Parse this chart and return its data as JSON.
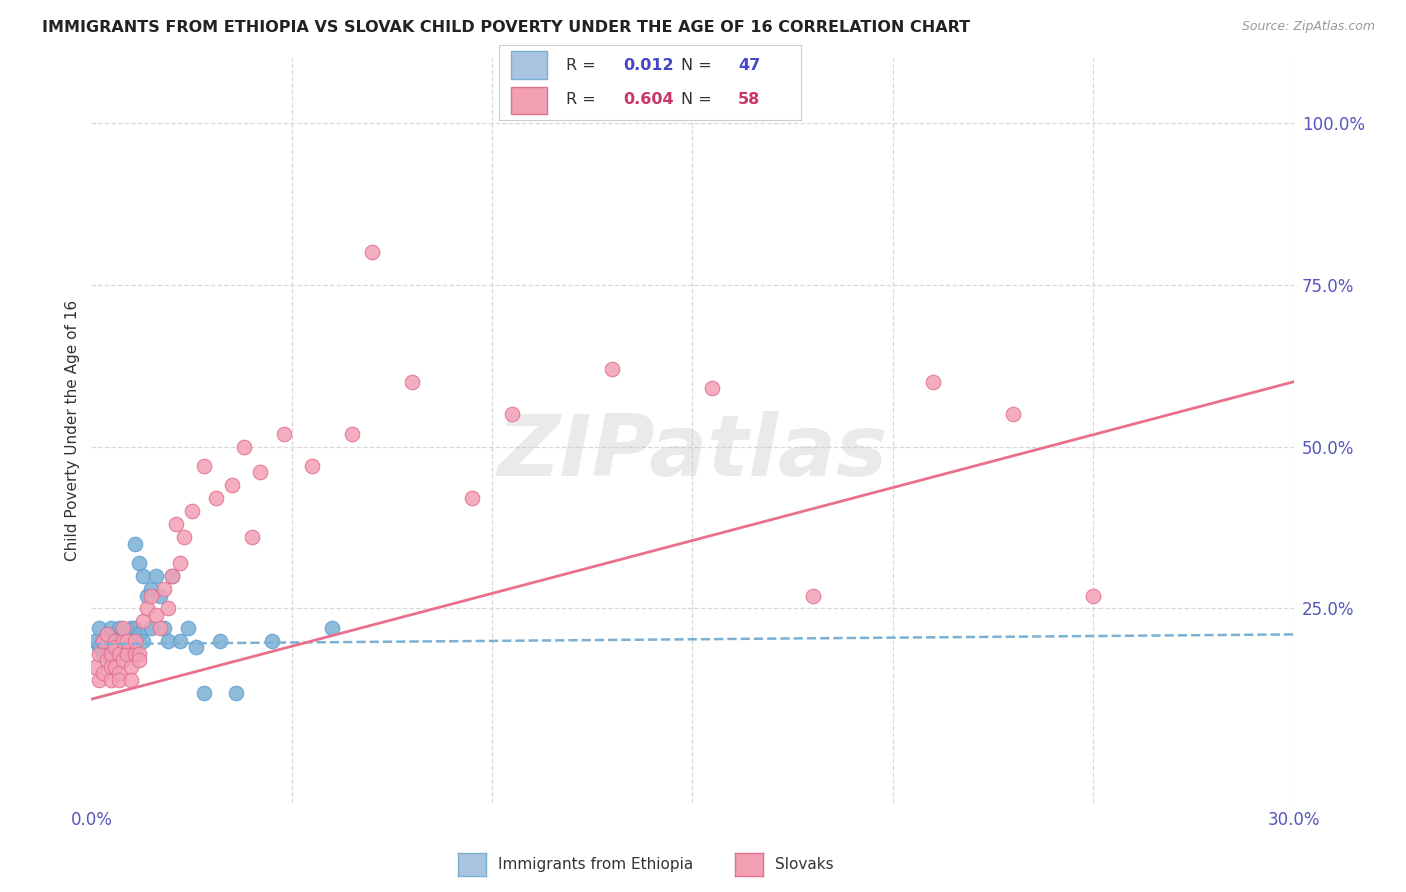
{
  "title": "IMMIGRANTS FROM ETHIOPIA VS SLOVAK CHILD POVERTY UNDER THE AGE OF 16 CORRELATION CHART",
  "source": "Source: ZipAtlas.com",
  "ylabel": "Child Poverty Under the Age of 16",
  "xlim": [
    0.0,
    0.3
  ],
  "ylim": [
    -0.05,
    1.1
  ],
  "xticks": [
    0.0,
    0.05,
    0.1,
    0.15,
    0.2,
    0.25,
    0.3
  ],
  "xticklabels": [
    "0.0%",
    "",
    "",
    "",
    "",
    "",
    "30.0%"
  ],
  "right_ytick_vals": [
    0.0,
    0.25,
    0.5,
    0.75,
    1.0
  ],
  "right_ytick_labels": [
    "",
    "25.0%",
    "50.0%",
    "75.0%",
    "100.0%"
  ],
  "ethiopia_x": [
    0.001,
    0.002,
    0.002,
    0.003,
    0.003,
    0.004,
    0.004,
    0.005,
    0.005,
    0.005,
    0.006,
    0.006,
    0.006,
    0.007,
    0.007,
    0.007,
    0.007,
    0.008,
    0.008,
    0.008,
    0.009,
    0.009,
    0.01,
    0.01,
    0.01,
    0.011,
    0.011,
    0.012,
    0.012,
    0.013,
    0.013,
    0.014,
    0.015,
    0.015,
    0.016,
    0.017,
    0.018,
    0.019,
    0.02,
    0.022,
    0.024,
    0.026,
    0.028,
    0.032,
    0.036,
    0.045,
    0.06
  ],
  "ethiopia_y": [
    0.2,
    0.19,
    0.22,
    0.18,
    0.2,
    0.21,
    0.19,
    0.2,
    0.22,
    0.17,
    0.2,
    0.19,
    0.18,
    0.2,
    0.21,
    0.22,
    0.18,
    0.2,
    0.19,
    0.21,
    0.2,
    0.19,
    0.22,
    0.2,
    0.18,
    0.35,
    0.22,
    0.21,
    0.32,
    0.2,
    0.3,
    0.27,
    0.28,
    0.22,
    0.3,
    0.27,
    0.22,
    0.2,
    0.3,
    0.2,
    0.22,
    0.19,
    0.12,
    0.2,
    0.12,
    0.2,
    0.22
  ],
  "slovakia_x": [
    0.001,
    0.002,
    0.002,
    0.003,
    0.003,
    0.004,
    0.004,
    0.005,
    0.005,
    0.005,
    0.006,
    0.006,
    0.006,
    0.007,
    0.007,
    0.007,
    0.008,
    0.008,
    0.008,
    0.009,
    0.009,
    0.01,
    0.01,
    0.011,
    0.011,
    0.012,
    0.012,
    0.013,
    0.014,
    0.015,
    0.016,
    0.017,
    0.018,
    0.019,
    0.02,
    0.021,
    0.022,
    0.023,
    0.025,
    0.028,
    0.031,
    0.035,
    0.038,
    0.042,
    0.048,
    0.055,
    0.065,
    0.08,
    0.105,
    0.13,
    0.155,
    0.18,
    0.21,
    0.23,
    0.25,
    0.04,
    0.07,
    0.095
  ],
  "slovakia_y": [
    0.16,
    0.18,
    0.14,
    0.2,
    0.15,
    0.21,
    0.17,
    0.18,
    0.14,
    0.16,
    0.2,
    0.16,
    0.19,
    0.18,
    0.15,
    0.14,
    0.2,
    0.17,
    0.22,
    0.18,
    0.2,
    0.16,
    0.14,
    0.18,
    0.2,
    0.18,
    0.17,
    0.23,
    0.25,
    0.27,
    0.24,
    0.22,
    0.28,
    0.25,
    0.3,
    0.38,
    0.32,
    0.36,
    0.4,
    0.47,
    0.42,
    0.44,
    0.5,
    0.46,
    0.52,
    0.47,
    0.52,
    0.6,
    0.55,
    0.62,
    0.59,
    0.27,
    0.6,
    0.55,
    0.27,
    0.36,
    0.8,
    0.42
  ],
  "ethiopia_scatter_color": "#7bafd4",
  "ethiopia_scatter_edge": "#5b9fd4",
  "slovakia_scatter_color": "#f4a0b4",
  "slovakia_scatter_edge": "#e07090",
  "ethiopia_trend_x": [
    0.0,
    0.3
  ],
  "ethiopia_trend_y": [
    0.195,
    0.21
  ],
  "slovakia_trend_x": [
    0.0,
    0.3
  ],
  "slovakia_trend_y": [
    0.11,
    0.6
  ],
  "trend_color_eth": "#7bafd4",
  "trend_color_slv": "#e8708a",
  "grid_color": "#d8d8d8",
  "bg_color": "#ffffff",
  "watermark_text": "ZIPatlas",
  "r1_val": "0.012",
  "n1_val": "47",
  "r2_val": "0.604",
  "n2_val": "58",
  "legend_color1": "#a8c4e0",
  "legend_color2": "#f4a0b4",
  "legend_edge1": "#7bafd4",
  "legend_edge2": "#e07090",
  "r1_color": "#4444cc",
  "n1_color": "#4444cc",
  "r2_color": "#cc3366",
  "n2_color": "#cc3366",
  "bottom_legend": [
    {
      "label": "Immigrants from Ethiopia",
      "color": "#a8c4e0",
      "edge": "#7bafd4"
    },
    {
      "label": "Slovaks",
      "color": "#f4a0b4",
      "edge": "#e07090"
    }
  ]
}
